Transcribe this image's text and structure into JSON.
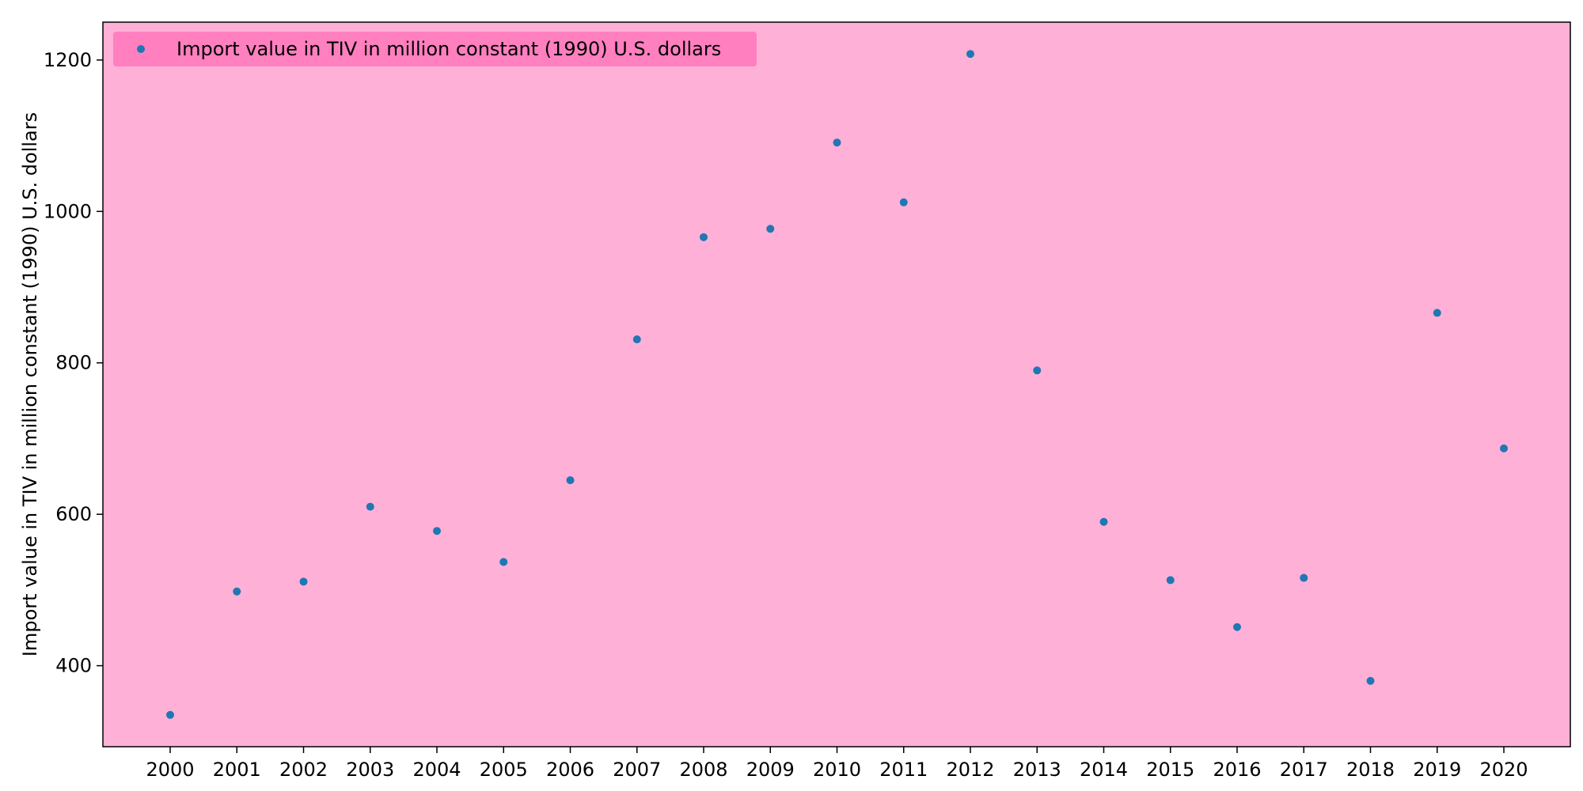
{
  "chart_data": {
    "type": "scatter",
    "title": "",
    "xlabel": "",
    "ylabel": "Import value in TIV in million constant (1990) U.S. dollars",
    "x": [
      "2000",
      "2001",
      "2002",
      "2003",
      "2004",
      "2005",
      "2006",
      "2007",
      "2008",
      "2009",
      "2010",
      "2011",
      "2012",
      "2013",
      "2014",
      "2015",
      "2016",
      "2017",
      "2018",
      "2019",
      "2020"
    ],
    "series": [
      {
        "name": "Import value in TIV in million constant (1990) U.S. dollars",
        "color": "#1f77b4",
        "values": [
          335,
          498,
          511,
          610,
          578,
          537,
          645,
          831,
          966,
          977,
          1091,
          1012,
          1208,
          790,
          590,
          513,
          451,
          516,
          380,
          866,
          687
        ]
      }
    ],
    "yticks": [
      400,
      600,
      800,
      1000,
      1200
    ],
    "ylim": [
      293,
      1250
    ],
    "grid": false,
    "legend_position": "top-left",
    "plot_background": "#ffb0d7",
    "legend_background": "#ff7fbf"
  }
}
